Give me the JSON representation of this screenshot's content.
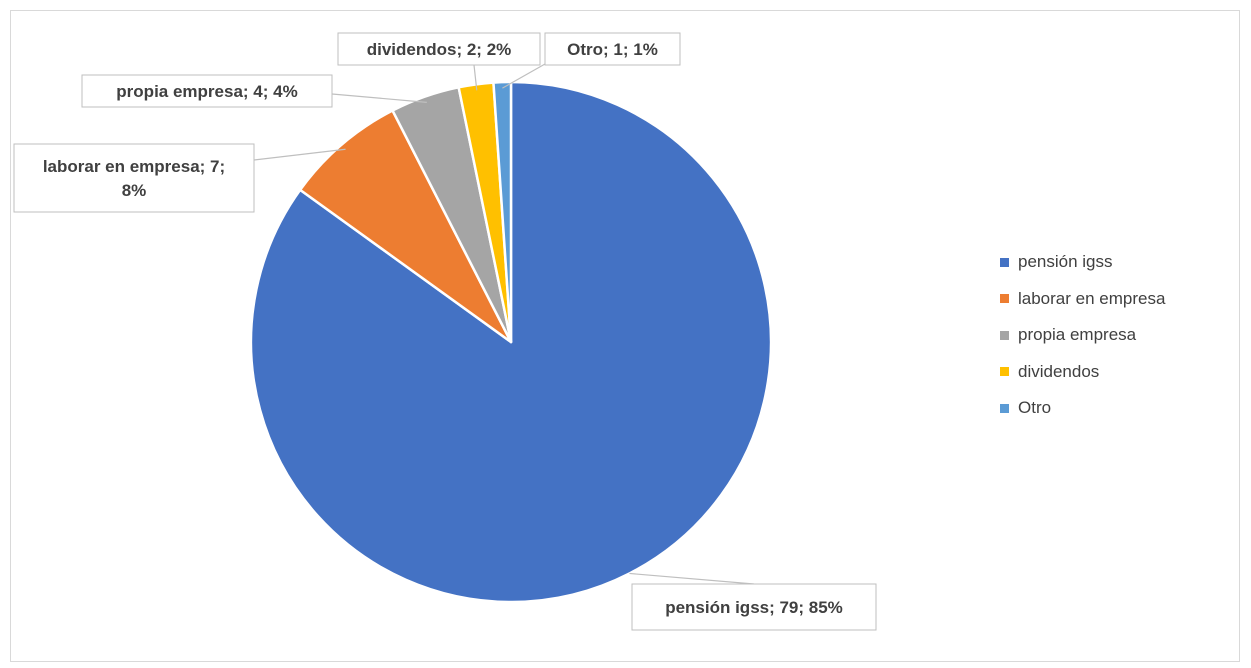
{
  "chart_data": {
    "type": "pie",
    "title": "",
    "categories": [
      "pensión igss",
      "laborar en empresa",
      "propia empresa",
      "dividendos",
      "Otro"
    ],
    "values": [
      79,
      7,
      4,
      2,
      1
    ],
    "percent_labels": [
      "85%",
      "8%",
      "4%",
      "2%",
      "1%"
    ],
    "data_labels": [
      [
        "pensión igss; 79; 85%"
      ],
      [
        "laborar en empresa; 7;",
        "8%"
      ],
      [
        "propia empresa; 4; 4%"
      ],
      [
        "dividendos; 2; 2%"
      ],
      [
        "Otro; 1; 1%"
      ]
    ],
    "colors": [
      "#4472c4",
      "#ed7d31",
      "#a5a5a5",
      "#ffc000",
      "#5b9bd5"
    ],
    "start_angle_deg": 0,
    "direction": "clockwise",
    "legend_placement": "right"
  }
}
